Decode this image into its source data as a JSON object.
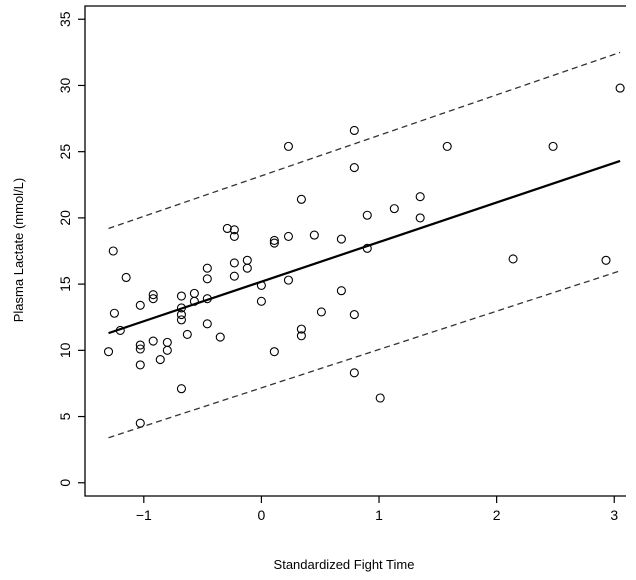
{
  "chart_data": {
    "type": "scatter",
    "xlabel": "Standardized Fight Time",
    "ylabel": "Plasma Lactate (mmol/L)",
    "xlim": [
      -1.5,
      3.1
    ],
    "ylim": [
      -1,
      36
    ],
    "x_ticks": [
      -1,
      0,
      1,
      2,
      3
    ],
    "y_ticks": [
      0,
      5,
      10,
      15,
      20,
      25,
      30,
      35
    ],
    "x_tick_labels": [
      "−1",
      "0",
      "1",
      "2",
      "3"
    ],
    "y_tick_labels": [
      "0",
      "5",
      "10",
      "15",
      "20",
      "25",
      "30",
      "35"
    ],
    "grid": false,
    "points": [
      {
        "x": -1.3,
        "y": 9.9
      },
      {
        "x": -1.26,
        "y": 17.5
      },
      {
        "x": -1.25,
        "y": 12.8
      },
      {
        "x": -1.2,
        "y": 11.5
      },
      {
        "x": -1.15,
        "y": 15.5
      },
      {
        "x": -1.03,
        "y": 13.4
      },
      {
        "x": -1.03,
        "y": 10.4
      },
      {
        "x": -1.03,
        "y": 10.1
      },
      {
        "x": -1.03,
        "y": 8.9
      },
      {
        "x": -1.03,
        "y": 4.5
      },
      {
        "x": -0.92,
        "y": 14.2
      },
      {
        "x": -0.92,
        "y": 13.9
      },
      {
        "x": -0.92,
        "y": 10.7
      },
      {
        "x": -0.86,
        "y": 9.3
      },
      {
        "x": -0.8,
        "y": 10.6
      },
      {
        "x": -0.8,
        "y": 10.0
      },
      {
        "x": -0.68,
        "y": 14.1
      },
      {
        "x": -0.68,
        "y": 13.2
      },
      {
        "x": -0.68,
        "y": 12.7
      },
      {
        "x": -0.68,
        "y": 12.3
      },
      {
        "x": -0.68,
        "y": 7.1
      },
      {
        "x": -0.63,
        "y": 11.2
      },
      {
        "x": -0.57,
        "y": 14.3
      },
      {
        "x": -0.57,
        "y": 13.7
      },
      {
        "x": -0.46,
        "y": 16.2
      },
      {
        "x": -0.46,
        "y": 15.4
      },
      {
        "x": -0.46,
        "y": 13.9
      },
      {
        "x": -0.46,
        "y": 12.0
      },
      {
        "x": -0.35,
        "y": 11.0
      },
      {
        "x": -0.29,
        "y": 19.2
      },
      {
        "x": -0.23,
        "y": 19.1
      },
      {
        "x": -0.23,
        "y": 18.6
      },
      {
        "x": -0.23,
        "y": 16.6
      },
      {
        "x": -0.23,
        "y": 15.6
      },
      {
        "x": -0.12,
        "y": 16.8
      },
      {
        "x": -0.12,
        "y": 16.2
      },
      {
        "x": 0.0,
        "y": 14.9
      },
      {
        "x": 0.0,
        "y": 13.7
      },
      {
        "x": 0.11,
        "y": 18.3
      },
      {
        "x": 0.11,
        "y": 18.1
      },
      {
        "x": 0.11,
        "y": 9.9
      },
      {
        "x": 0.23,
        "y": 25.4
      },
      {
        "x": 0.23,
        "y": 18.6
      },
      {
        "x": 0.23,
        "y": 15.3
      },
      {
        "x": 0.34,
        "y": 21.4
      },
      {
        "x": 0.34,
        "y": 11.6
      },
      {
        "x": 0.34,
        "y": 11.1
      },
      {
        "x": 0.45,
        "y": 18.7
      },
      {
        "x": 0.51,
        "y": 12.9
      },
      {
        "x": 0.68,
        "y": 18.4
      },
      {
        "x": 0.68,
        "y": 14.5
      },
      {
        "x": 0.79,
        "y": 26.6
      },
      {
        "x": 0.79,
        "y": 23.8
      },
      {
        "x": 0.79,
        "y": 12.7
      },
      {
        "x": 0.79,
        "y": 8.3
      },
      {
        "x": 0.9,
        "y": 20.2
      },
      {
        "x": 0.9,
        "y": 17.7
      },
      {
        "x": 1.01,
        "y": 6.4
      },
      {
        "x": 1.13,
        "y": 20.7
      },
      {
        "x": 1.35,
        "y": 21.6
      },
      {
        "x": 1.35,
        "y": 20.0
      },
      {
        "x": 1.58,
        "y": 25.4
      },
      {
        "x": 2.14,
        "y": 16.9
      },
      {
        "x": 2.48,
        "y": 25.4
      },
      {
        "x": 2.93,
        "y": 16.8
      },
      {
        "x": 3.05,
        "y": 29.8
      }
    ],
    "fit_line": {
      "x": [
        -1.3,
        3.05
      ],
      "y": [
        11.3,
        24.3
      ]
    },
    "band_upper": {
      "x": [
        -1.3,
        3.05
      ],
      "y": [
        19.2,
        32.5
      ]
    },
    "band_lower": {
      "x": [
        -1.3,
        3.05
      ],
      "y": [
        3.4,
        16.0
      ]
    }
  }
}
